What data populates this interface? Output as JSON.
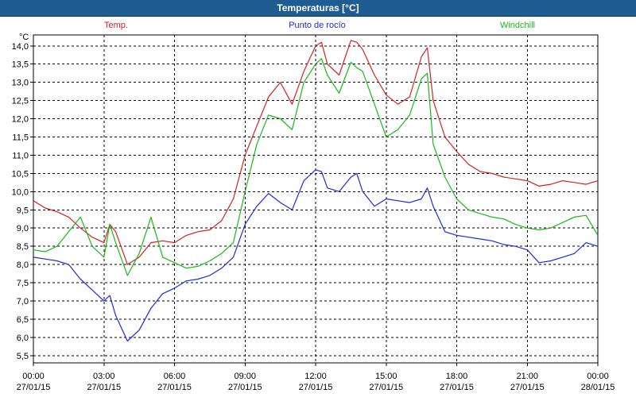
{
  "window_title": "Temperaturas [°C]",
  "chart_data": {
    "type": "line",
    "title": "Temperaturas [°C]",
    "ylabel": "°C",
    "ylim": [
      5.3,
      14.3
    ],
    "yticks": [
      5.5,
      6.0,
      6.5,
      7.0,
      7.5,
      8.0,
      8.5,
      9.0,
      9.5,
      10.0,
      10.5,
      11.0,
      11.5,
      12.0,
      12.5,
      13.0,
      13.5,
      14.0
    ],
    "ytick_labels": [
      "5,5",
      "6,0",
      "6,5",
      "7,0",
      "7,5",
      "8,0",
      "8,5",
      "9,0",
      "9,5",
      "10,0",
      "10,5",
      "11,0",
      "11,5",
      "12,0",
      "12,5",
      "13,0",
      "13,5",
      "14,0"
    ],
    "xlim": [
      0,
      24
    ],
    "x_ticks": [
      {
        "x": 0,
        "time": "00:00",
        "date": "27/01/15"
      },
      {
        "x": 3,
        "time": "03:00",
        "date": "27/01/15"
      },
      {
        "x": 6,
        "time": "06:00",
        "date": "27/01/15"
      },
      {
        "x": 9,
        "time": "09:00",
        "date": "27/01/15"
      },
      {
        "x": 12,
        "time": "12:00",
        "date": "27/01/15"
      },
      {
        "x": 15,
        "time": "15:00",
        "date": "27/01/15"
      },
      {
        "x": 18,
        "time": "18:00",
        "date": "27/01/15"
      },
      {
        "x": 21,
        "time": "21:00",
        "date": "27/01/15"
      },
      {
        "x": 24,
        "time": "00:00",
        "date": "28/01/15"
      }
    ],
    "grid": true,
    "x": [
      0,
      0.5,
      1,
      1.5,
      2,
      2.5,
      3,
      3.25,
      3.5,
      4,
      4.5,
      5,
      5.5,
      6,
      6.5,
      7,
      7.5,
      8,
      8.5,
      9,
      9.5,
      10,
      10.5,
      11,
      11.5,
      12,
      12.25,
      12.5,
      13,
      13.5,
      13.75,
      14,
      14.5,
      15,
      15.5,
      16,
      16.5,
      16.75,
      17,
      17.5,
      18,
      18.5,
      19,
      19.5,
      20,
      20.5,
      21,
      21.5,
      22,
      22.5,
      23,
      23.5,
      24
    ],
    "series": [
      {
        "name": "Temp.",
        "color": "#d42020",
        "values": [
          9.75,
          9.55,
          9.45,
          9.3,
          9.0,
          8.75,
          8.6,
          9.1,
          8.9,
          8.0,
          8.2,
          8.6,
          8.65,
          8.6,
          8.8,
          8.9,
          8.95,
          9.2,
          9.8,
          11.0,
          11.8,
          12.6,
          13.0,
          12.4,
          13.3,
          14.0,
          14.1,
          13.5,
          13.2,
          14.15,
          14.1,
          13.9,
          13.2,
          12.65,
          12.4,
          12.6,
          13.7,
          13.95,
          12.5,
          11.5,
          11.1,
          10.75,
          10.55,
          10.5,
          10.4,
          10.35,
          10.3,
          10.15,
          10.2,
          10.3,
          10.25,
          10.2,
          10.3
        ]
      },
      {
        "name": "Punto de rocío",
        "color": "#1f2ad8",
        "values": [
          8.2,
          8.15,
          8.1,
          8.0,
          7.6,
          7.3,
          7.0,
          7.15,
          6.6,
          5.9,
          6.2,
          6.8,
          7.2,
          7.35,
          7.55,
          7.6,
          7.7,
          7.9,
          8.2,
          9.1,
          9.6,
          9.95,
          9.7,
          9.5,
          10.3,
          10.6,
          10.55,
          10.1,
          10.0,
          10.4,
          10.5,
          10.0,
          9.6,
          9.8,
          9.75,
          9.7,
          9.8,
          10.1,
          9.6,
          8.9,
          8.8,
          8.75,
          8.7,
          8.65,
          8.55,
          8.5,
          8.4,
          8.05,
          8.1,
          8.2,
          8.3,
          8.6,
          8.5
        ]
      },
      {
        "name": "Windchill",
        "color": "#18b818",
        "values": [
          8.4,
          8.35,
          8.5,
          8.9,
          9.3,
          8.5,
          8.2,
          9.1,
          8.6,
          7.7,
          8.3,
          9.3,
          8.2,
          8.05,
          7.9,
          7.95,
          8.1,
          8.3,
          8.6,
          10.0,
          11.3,
          12.1,
          12.0,
          11.7,
          13.0,
          13.5,
          13.65,
          13.2,
          12.7,
          13.55,
          13.4,
          13.3,
          12.4,
          11.5,
          11.7,
          12.1,
          13.1,
          13.25,
          11.3,
          10.4,
          9.8,
          9.5,
          9.4,
          9.3,
          9.25,
          9.1,
          9.0,
          8.95,
          9.0,
          9.15,
          9.3,
          9.35,
          8.8
        ]
      }
    ],
    "legend": [
      {
        "name": "Temp.",
        "color": "#d42020",
        "position": "left"
      },
      {
        "name": "Punto de rocío",
        "color": "#1f2ad8",
        "position": "center"
      },
      {
        "name": "Windchill",
        "color": "#18b818",
        "position": "right"
      }
    ],
    "colors": {
      "axis": "#000000",
      "grid": "#000000",
      "background": "#ffffff",
      "titlebar": "#1f5c91"
    }
  }
}
